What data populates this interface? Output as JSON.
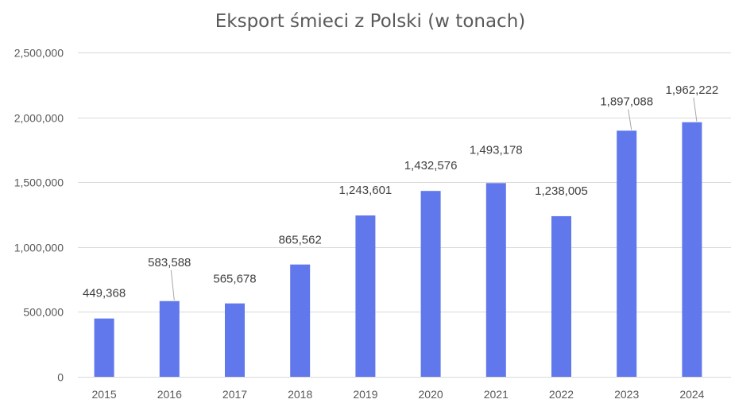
{
  "chart_data": {
    "type": "bar",
    "title": "Eksport śmieci z Polski (w tonach)",
    "categories": [
      "2015",
      "2016",
      "2017",
      "2018",
      "2019",
      "2020",
      "2021",
      "2022",
      "2023",
      "2024"
    ],
    "values": [
      449368,
      583588,
      565678,
      865562,
      1243601,
      1432576,
      1493178,
      1238005,
      1897088,
      1962222
    ],
    "data_labels": [
      "449,368",
      "583,588",
      "565,678",
      "865,562",
      "1,243,601",
      "1,432,576",
      "1,493,178",
      "1,238,005",
      "1,897,088",
      "1,962,222"
    ],
    "yticks": [
      0,
      500000,
      1000000,
      1500000,
      2000000,
      2500000
    ],
    "ytick_labels": [
      "0",
      "500,000",
      "1,000,000",
      "1,500,000",
      "2,000,000",
      "2,500,000"
    ],
    "ylim": [
      0,
      2500000
    ],
    "grid": true,
    "legend": "none",
    "bar_color": "#6078ec",
    "xlabel": "",
    "ylabel": ""
  }
}
